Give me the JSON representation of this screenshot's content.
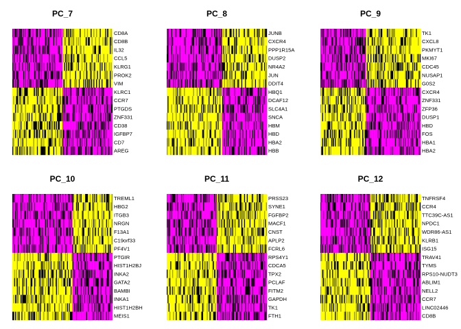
{
  "chart_data": [
    {
      "type": "heatmap",
      "title": "PC_7",
      "genes": [
        "CD8A",
        "CD8B",
        "IL32",
        "CCL5",
        "KLRG1",
        "PROK2",
        "VIM",
        "KLRC1",
        "CCR7",
        "PTGDS",
        "ZNF331",
        "CD38",
        "IGFBP7",
        "CD7",
        "AREG"
      ],
      "n_cells": 110,
      "color_scale": [
        "#ff00ff",
        "#000000",
        "#ffff00"
      ],
      "pattern": {
        "split": 0.5,
        "genes_high_right": 7
      }
    },
    {
      "type": "heatmap",
      "title": "PC_8",
      "genes": [
        "JUNB",
        "CXCR4",
        "PPP1R15A",
        "DUSP2",
        "NR4A2",
        "JUN",
        "DDIT4",
        "HBQ1",
        "DCAF12",
        "SLC4A1",
        "SNCA",
        "HBM",
        "HBD",
        "HBA2",
        "HBB"
      ],
      "n_cells": 110,
      "color_scale": [
        "#ff00ff",
        "#000000",
        "#ffff00"
      ],
      "pattern": {
        "split": 0.55,
        "genes_high_right": 7
      }
    },
    {
      "type": "heatmap",
      "title": "PC_9",
      "genes": [
        "TK1",
        "CXCL8",
        "PKMYT1",
        "MKI67",
        "CDC45",
        "NUSAP1",
        "G0S2",
        "CXCR4",
        "ZNF331",
        "ZFP36",
        "DUSP1",
        "HBD",
        "FOS",
        "HBA1",
        "HBA2"
      ],
      "n_cells": 110,
      "color_scale": [
        "#ff00ff",
        "#000000",
        "#ffff00"
      ],
      "pattern": {
        "split": 0.45,
        "genes_high_right": 7
      }
    },
    {
      "type": "heatmap",
      "title": "PC_10",
      "genes": [
        "TREML1",
        "HBG2",
        "ITGB3",
        "NRGN",
        "F13A1",
        "C19orf33",
        "PF4V1",
        "PTGIR",
        "HIST1H2BJ",
        "INKA2",
        "GATA2",
        "BAMBI",
        "INKA1",
        "HIST1H2BH",
        "MEIS1"
      ],
      "n_cells": 110,
      "color_scale": [
        "#ff00ff",
        "#000000",
        "#ffff00"
      ],
      "pattern": {
        "split": 0.6,
        "genes_high_right": 7
      }
    },
    {
      "type": "heatmap",
      "title": "PC_11",
      "genes": [
        "PRSS23",
        "SYNE1",
        "FGFBP2",
        "MACF1",
        "CNST",
        "APLP2",
        "FCRL6",
        "RPS4Y1",
        "CDCA5",
        "TPX2",
        "PCLAF",
        "FITM2",
        "GAPDH",
        "TK1",
        "FTH1"
      ],
      "n_cells": 110,
      "color_scale": [
        "#ff00ff",
        "#000000",
        "#ffff00"
      ],
      "pattern": {
        "split": 0.5,
        "genes_high_right": 7
      }
    },
    {
      "type": "heatmap",
      "title": "PC_12",
      "genes": [
        "TNFRSF4",
        "CCR4",
        "TTC39C-AS1",
        "NPDC1",
        "WDR86-AS1",
        "KLRB1",
        "ISG15",
        "TRAV41",
        "TYMS",
        "RPS10-NUDT3",
        "ABLIM1",
        "NELL2",
        "CCR7",
        "LINC02446",
        "CD8B"
      ],
      "n_cells": 110,
      "color_scale": [
        "#ff00ff",
        "#000000",
        "#ffff00"
      ],
      "pattern": {
        "split": 0.5,
        "genes_high_right": 7
      }
    }
  ]
}
